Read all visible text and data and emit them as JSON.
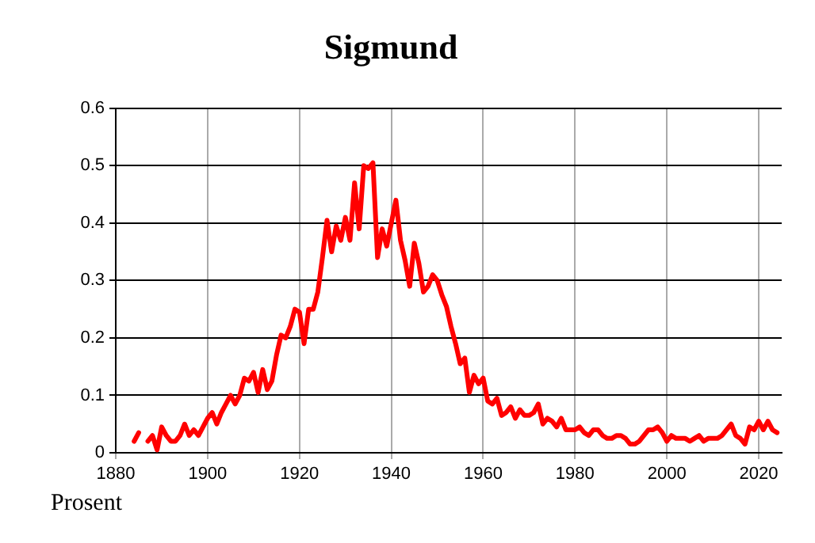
{
  "chart_data": {
    "type": "line",
    "title": "Sigmund",
    "ylabel": "Prosent",
    "x": [
      1884,
      1885,
      1886,
      1887,
      1888,
      1889,
      1890,
      1891,
      1892,
      1893,
      1894,
      1895,
      1896,
      1897,
      1898,
      1899,
      1900,
      1901,
      1902,
      1903,
      1904,
      1905,
      1906,
      1907,
      1908,
      1909,
      1910,
      1911,
      1912,
      1913,
      1914,
      1915,
      1916,
      1917,
      1918,
      1919,
      1920,
      1921,
      1922,
      1923,
      1924,
      1925,
      1926,
      1927,
      1928,
      1929,
      1930,
      1931,
      1932,
      1933,
      1934,
      1935,
      1936,
      1937,
      1938,
      1939,
      1940,
      1941,
      1942,
      1943,
      1944,
      1945,
      1946,
      1947,
      1948,
      1949,
      1950,
      1951,
      1952,
      1953,
      1954,
      1955,
      1956,
      1957,
      1958,
      1959,
      1960,
      1961,
      1962,
      1963,
      1964,
      1965,
      1966,
      1967,
      1968,
      1969,
      1970,
      1971,
      1972,
      1973,
      1974,
      1975,
      1976,
      1977,
      1978,
      1979,
      1980,
      1981,
      1982,
      1983,
      1984,
      1985,
      1986,
      1987,
      1988,
      1989,
      1990,
      1991,
      1992,
      1993,
      1994,
      1995,
      1996,
      1997,
      1998,
      1999,
      2000,
      2001,
      2002,
      2003,
      2004,
      2005,
      2006,
      2007,
      2008,
      2009,
      2010,
      2011,
      2012,
      2013,
      2014,
      2015,
      2016,
      2017,
      2018,
      2019,
      2020,
      2021,
      2022,
      2023,
      2024
    ],
    "series": [
      {
        "color": "#ff0000",
        "values": [
          0.02,
          0.035,
          null,
          0.02,
          0.03,
          0.005,
          0.045,
          0.03,
          0.02,
          0.02,
          0.03,
          0.05,
          0.03,
          0.04,
          0.03,
          0.045,
          0.06,
          0.07,
          0.05,
          0.07,
          0.085,
          0.1,
          0.085,
          0.1,
          0.13,
          0.125,
          0.14,
          0.105,
          0.145,
          0.11,
          0.125,
          0.17,
          0.205,
          0.2,
          0.22,
          0.25,
          0.245,
          0.19,
          0.25,
          0.25,
          0.28,
          0.34,
          0.405,
          0.35,
          0.395,
          0.37,
          0.41,
          0.37,
          0.47,
          0.39,
          0.5,
          0.495,
          0.505,
          0.34,
          0.39,
          0.36,
          0.4,
          0.44,
          0.37,
          0.335,
          0.29,
          0.365,
          0.33,
          0.28,
          0.29,
          0.31,
          0.3,
          0.275,
          0.255,
          0.22,
          0.19,
          0.155,
          0.165,
          0.105,
          0.135,
          0.12,
          0.13,
          0.09,
          0.085,
          0.095,
          0.065,
          0.07,
          0.08,
          0.06,
          0.075,
          0.065,
          0.065,
          0.07,
          0.085,
          0.05,
          0.06,
          0.055,
          0.045,
          0.06,
          0.04,
          0.04,
          0.04,
          0.045,
          0.035,
          0.03,
          0.04,
          0.04,
          0.03,
          0.025,
          0.025,
          0.03,
          0.03,
          0.025,
          0.015,
          0.015,
          0.02,
          0.03,
          0.04,
          0.04,
          0.045,
          0.035,
          0.02,
          0.03,
          0.025,
          0.025,
          0.025,
          0.02,
          0.025,
          0.03,
          0.02,
          0.025,
          0.025,
          0.025,
          0.03,
          0.04,
          0.05,
          0.03,
          0.025,
          0.015,
          0.045,
          0.04,
          0.055,
          0.04,
          0.055,
          0.04,
          0.035
        ]
      }
    ],
    "xlim": [
      1880,
      2025
    ],
    "xticks": [
      1880,
      1900,
      1920,
      1940,
      1960,
      1980,
      2000,
      2020
    ],
    "ylim": [
      0,
      0.6
    ],
    "yticks": [
      0,
      0.1,
      0.2,
      0.3,
      0.4,
      0.5,
      0.6
    ],
    "grid": true,
    "legend": false,
    "marker": "none",
    "line_style": "solid"
  }
}
